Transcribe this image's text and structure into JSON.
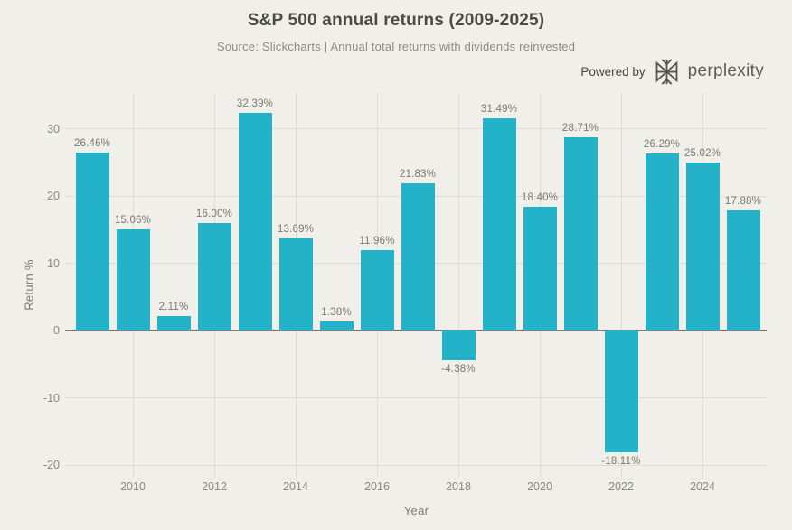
{
  "header": {
    "title": "S&P 500 annual returns (2009-2025)",
    "subtitle": "Source: Slickcharts | Annual total returns with dividends reinvested"
  },
  "branding": {
    "powered_by_label": "Powered by",
    "brand_name": "perplexity",
    "logo_icon": "perplexity-knot"
  },
  "colors": {
    "background": "#f0efe9",
    "bar": "#23b2c8",
    "gridline": "#dedcd4",
    "zero_line": "#7c796f",
    "title_text": "#4c4b45",
    "label_text": "#797770"
  },
  "chart_data": {
    "type": "bar",
    "title": "S&P 500 annual returns (2009-2025)",
    "subtitle": "Source: Slickcharts | Annual total returns with dividends reinvested",
    "xlabel": "Year",
    "ylabel": "Return %",
    "categories": [
      2009,
      2010,
      2011,
      2012,
      2013,
      2014,
      2015,
      2016,
      2017,
      2018,
      2019,
      2020,
      2021,
      2022,
      2023,
      2024,
      2025
    ],
    "values": [
      26.46,
      15.06,
      2.11,
      16.0,
      32.39,
      13.69,
      1.38,
      11.96,
      21.83,
      -4.38,
      31.49,
      18.4,
      28.71,
      -18.11,
      26.29,
      25.02,
      17.88
    ],
    "value_labels": [
      "26.46%",
      "15.06%",
      "2.11%",
      "16.00%",
      "32.39%",
      "13.69%",
      "1.38%",
      "11.96%",
      "21.83%",
      "-4.38%",
      "31.49%",
      "18.40%",
      "28.71%",
      "-18.11%",
      "26.29%",
      "25.02%",
      "17.88%"
    ],
    "yticks": [
      30,
      20,
      10,
      0,
      -10,
      -20
    ],
    "ytick_labels": [
      "30",
      "20",
      "10",
      "0",
      "-10",
      "-20"
    ],
    "xticks": [
      2010,
      2012,
      2014,
      2016,
      2018,
      2020,
      2022,
      2024
    ],
    "ylim": [
      -21.8,
      35.3
    ],
    "grid": true,
    "legend": "none",
    "bar_color": "#23b2c8"
  }
}
